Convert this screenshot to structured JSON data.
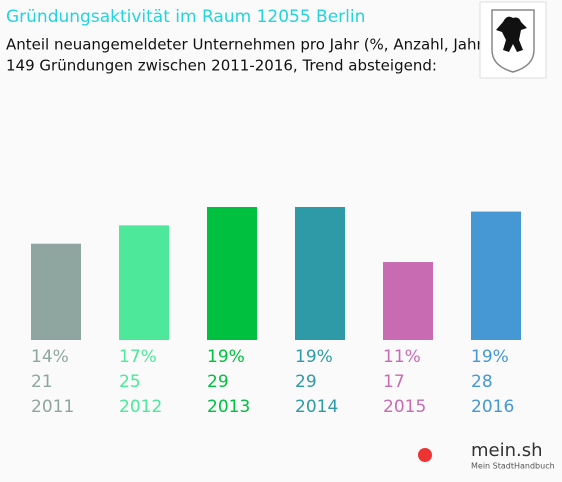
{
  "chart_data": {
    "type": "bar",
    "title": "Gründungsaktivität im Raum 12055 Berlin",
    "subtitle": [
      "Anteil neuangemeldeter Unternehmen pro Jahr (%, Anzahl, Jahr)",
      "149 Gründungen zwischen 2011-2016, Trend absteigend:"
    ],
    "categories": [
      "2011",
      "2012",
      "2013",
      "2014",
      "2015",
      "2016"
    ],
    "values": [
      21,
      25,
      29,
      29,
      17,
      28
    ],
    "shares": [
      "14%",
      "17%",
      "19%",
      "19%",
      "11%",
      "19%"
    ],
    "colors": [
      "#8fa6a0",
      "#4de89a",
      "#00c040",
      "#2e9aa8",
      "#c96bb2",
      "#4598d4"
    ]
  },
  "branding": {
    "logo": "mein.sh",
    "tagline": "Mein StadtHandbuch"
  }
}
